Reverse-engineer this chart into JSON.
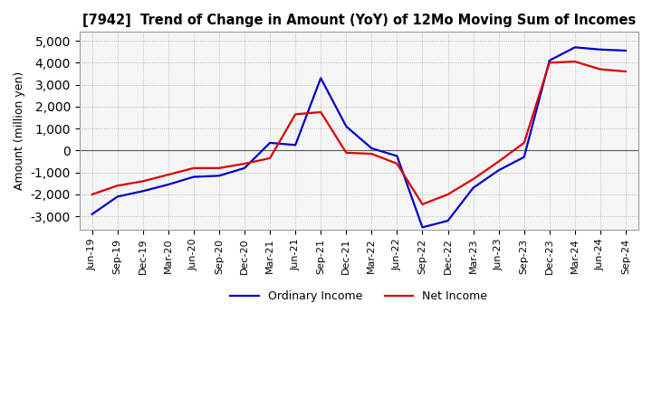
{
  "title": "[7942]  Trend of Change in Amount (YoY) of 12Mo Moving Sum of Incomes",
  "ylabel": "Amount (million yen)",
  "ylim": [
    -3600,
    5400
  ],
  "yticks": [
    -3000,
    -2000,
    -1000,
    0,
    1000,
    2000,
    3000,
    4000,
    5000
  ],
  "background_color": "#ffffff",
  "plot_bg_color": "#f5f5f5",
  "grid_color": "#aaaaaa",
  "x_labels": [
    "Jun-19",
    "Sep-19",
    "Dec-19",
    "Mar-20",
    "Jun-20",
    "Sep-20",
    "Dec-20",
    "Mar-21",
    "Jun-21",
    "Sep-21",
    "Dec-21",
    "Mar-22",
    "Jun-22",
    "Sep-22",
    "Dec-22",
    "Mar-23",
    "Jun-23",
    "Sep-23",
    "Dec-23",
    "Mar-24",
    "Jun-24",
    "Sep-24"
  ],
  "ordinary_income": [
    -2900,
    -2100,
    -1850,
    -1550,
    -1200,
    -1150,
    -800,
    350,
    250,
    3300,
    1100,
    100,
    -250,
    -3500,
    -3200,
    -1700,
    -900,
    -300,
    4100,
    4700,
    4600,
    4550
  ],
  "net_income": [
    -2000,
    -1600,
    -1400,
    -1100,
    -800,
    -800,
    -600,
    -350,
    1650,
    1750,
    -100,
    -150,
    -600,
    -2450,
    -2000,
    -1300,
    -500,
    350,
    4000,
    4050,
    3700,
    3600
  ],
  "ordinary_color": "#0000cc",
  "net_color": "#dd0000",
  "line_width": 1.6
}
